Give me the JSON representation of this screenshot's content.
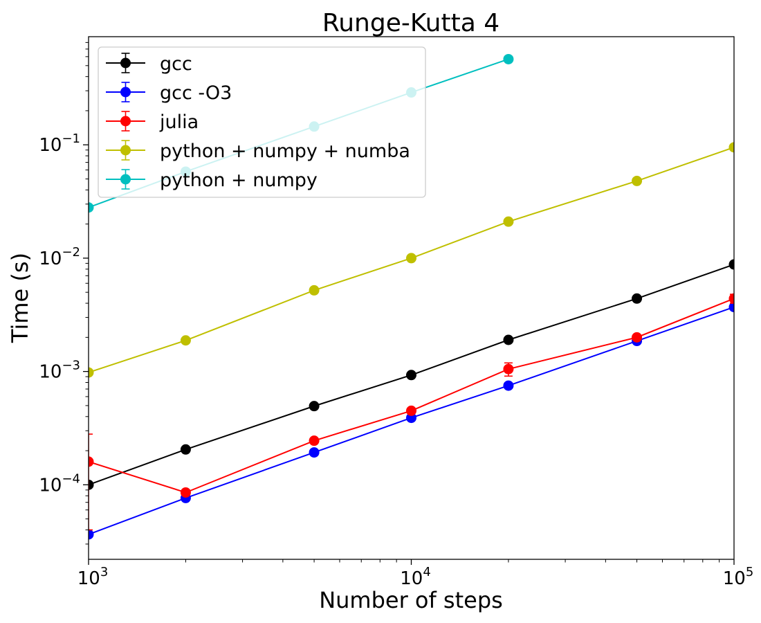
{
  "chart_data": {
    "type": "line",
    "title": "Runge-Kutta 4",
    "xlabel": "Number of steps",
    "ylabel": "Time (s)",
    "xscale": "log",
    "yscale": "log",
    "xlim": [
      1000,
      100000
    ],
    "ylim": [
      2.2e-05,
      0.9
    ],
    "grid": false,
    "legend_position": "upper-left",
    "x_ticks": [
      {
        "value": 1000,
        "base": "10",
        "exp": "3"
      },
      {
        "value": 10000,
        "base": "10",
        "exp": "4"
      },
      {
        "value": 100000,
        "base": "10",
        "exp": "5"
      }
    ],
    "y_ticks": [
      {
        "value": 0.0001,
        "base": "10",
        "exp": "−4"
      },
      {
        "value": 0.001,
        "base": "10",
        "exp": "−3"
      },
      {
        "value": 0.01,
        "base": "10",
        "exp": "−2"
      },
      {
        "value": 0.1,
        "base": "10",
        "exp": "−1"
      }
    ],
    "series": [
      {
        "name": "gcc",
        "color": "#000000",
        "x": [
          1000,
          2000,
          5000,
          10000,
          20000,
          50000,
          100000
        ],
        "y": [
          0.0001,
          0.000205,
          0.000495,
          0.00093,
          0.0019,
          0.0044,
          0.0088
        ],
        "err": [
          3e-06,
          5e-06,
          1e-05,
          2e-05,
          4e-05,
          8e-05,
          0.00012
        ]
      },
      {
        "name": "gcc -O3",
        "color": "#0000ff",
        "x": [
          1000,
          2000,
          5000,
          10000,
          20000,
          50000,
          100000
        ],
        "y": [
          3.65e-05,
          7.65e-05,
          0.000193,
          0.00039,
          0.00075,
          0.00186,
          0.0037
        ],
        "err": [
          2e-06,
          3e-06,
          5e-06,
          1e-05,
          2e-05,
          4e-05,
          8e-05
        ]
      },
      {
        "name": "julia",
        "color": "#ff0000",
        "x": [
          1000,
          2000,
          5000,
          10000,
          20000,
          50000,
          100000
        ],
        "y": [
          0.00016,
          8.55e-05,
          0.000245,
          0.00045,
          0.00105,
          0.002,
          0.0044
        ],
        "err": [
          0.00012,
          4e-06,
          1e-05,
          2e-05,
          0.00014,
          8e-05,
          0.0004
        ]
      },
      {
        "name": "python + numpy + numba",
        "color": "#bfbf00",
        "x": [
          1000,
          2000,
          5000,
          10000,
          20000,
          50000,
          100000
        ],
        "y": [
          0.00098,
          0.00188,
          0.0052,
          0.01,
          0.021,
          0.048,
          0.095
        ],
        "err": [
          2e-05,
          4e-05,
          0.0001,
          0.0002,
          0.0004,
          0.0008,
          0.0015
        ]
      },
      {
        "name": "python + numpy",
        "color": "#00bfbf",
        "x": [
          1000,
          2000,
          5000,
          10000,
          20000
        ],
        "y": [
          0.028,
          0.058,
          0.145,
          0.29,
          0.57
        ],
        "err": [
          0.0005,
          0.001,
          0.002,
          0.004,
          0.008
        ]
      }
    ]
  }
}
